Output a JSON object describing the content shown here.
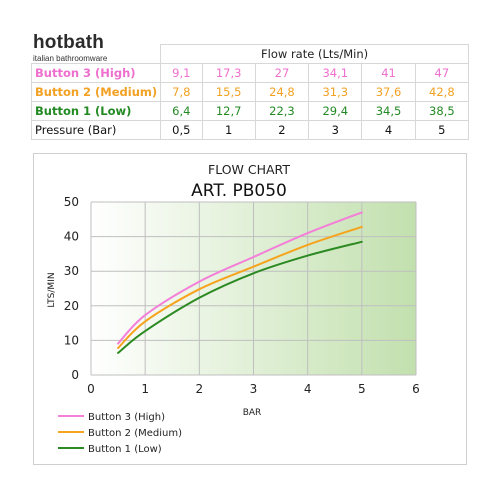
{
  "brand": {
    "name": "hotbath",
    "tagline": "italian bathroomware"
  },
  "table": {
    "header": "Flow rate (Lts/Min)",
    "rows": [
      {
        "label": "Button 3 (High)",
        "values": [
          "9,1",
          "17,3",
          "27",
          "34,1",
          "41",
          "47"
        ],
        "color": "#ee6fce"
      },
      {
        "label": "Button 2 (Medium)",
        "values": [
          "7,8",
          "15,5",
          "24,8",
          "31,3",
          "37,6",
          "42,8"
        ],
        "color": "#f2a122"
      },
      {
        "label": "Button 1 (Low)",
        "values": [
          "6,4",
          "12,7",
          "22,3",
          "29,4",
          "34,5",
          "38,5"
        ],
        "color": "#238a23"
      }
    ],
    "pressure": {
      "label": "Pressure (Bar)",
      "values": [
        "0,5",
        "1",
        "2",
        "3",
        "4",
        "5"
      ]
    }
  },
  "chart_data": {
    "type": "line",
    "title": "FLOW CHART",
    "subtitle": "ART. PB050",
    "xlabel": "BAR",
    "ylabel": "LTS/MIN",
    "xlim": [
      0,
      6
    ],
    "ylim": [
      0,
      50
    ],
    "xticks": [
      0,
      1,
      2,
      3,
      4,
      5,
      6
    ],
    "yticks": [
      0,
      10,
      20,
      30,
      40,
      50
    ],
    "grid": true,
    "legend_position": "bottom-left",
    "x": [
      0.5,
      1,
      2,
      3,
      4,
      5
    ],
    "series": [
      {
        "name": "Button 3 (High)",
        "values": [
          9.1,
          17.3,
          27,
          34.1,
          41,
          47
        ],
        "color": "#f47fd8"
      },
      {
        "name": "Button 2 (Medium)",
        "values": [
          7.8,
          15.5,
          24.8,
          31.3,
          37.6,
          42.8
        ],
        "color": "#f6a31e"
      },
      {
        "name": "Button 1 (Low)",
        "values": [
          6.4,
          12.7,
          22.3,
          29.4,
          34.5,
          38.5
        ],
        "color": "#2c8a23"
      }
    ]
  }
}
